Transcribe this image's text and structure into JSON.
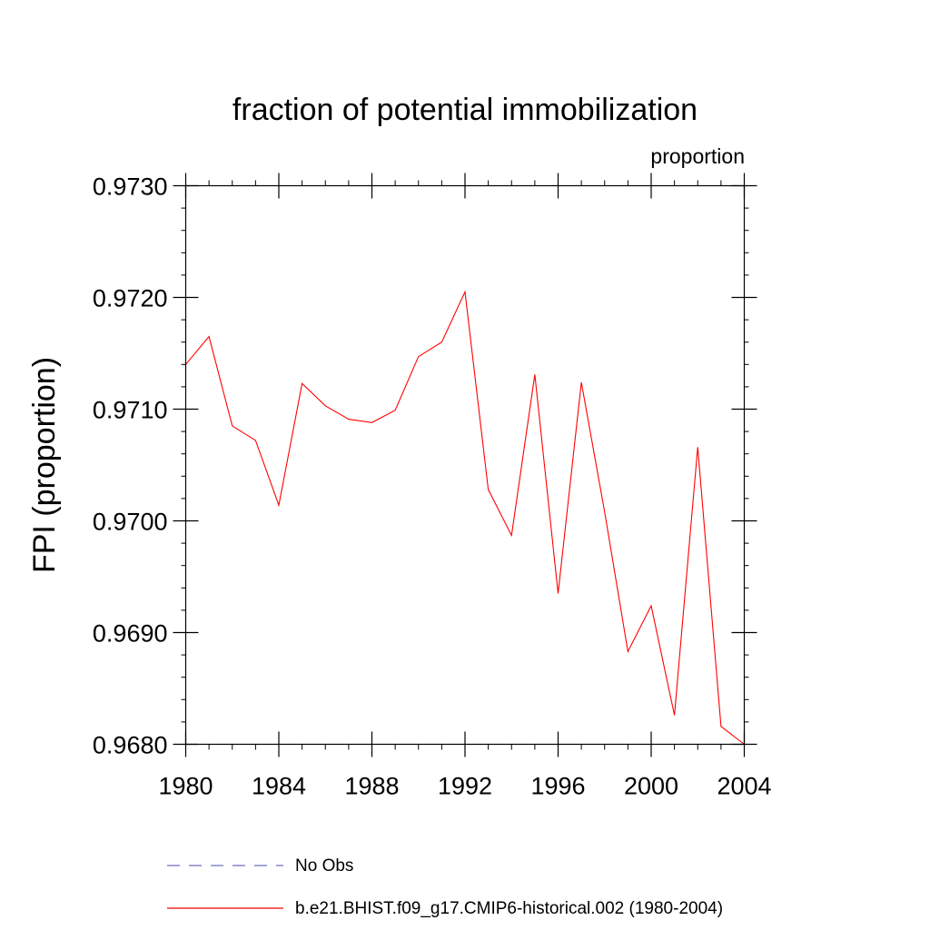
{
  "chart_data": {
    "type": "line",
    "title": "fraction of potential immobilization",
    "subtitle_right": "proportion",
    "ylabel": "FPI  (proportion)",
    "xlabel": "",
    "xlim": [
      1980,
      2004
    ],
    "ylim": [
      0.968,
      0.973
    ],
    "x_ticks": [
      1980,
      1984,
      1988,
      1992,
      1996,
      2000,
      2004
    ],
    "x_tick_labels": [
      "1980",
      "1984",
      "1988",
      "1992",
      "1996",
      "2000",
      "2004"
    ],
    "y_ticks": [
      0.968,
      0.969,
      0.97,
      0.971,
      0.972,
      0.973
    ],
    "y_tick_labels": [
      "0.9680",
      "0.9690",
      "0.9700",
      "0.9710",
      "0.9720",
      "0.9730"
    ],
    "x_minor_step": 1,
    "y_minor_step": 0.0002,
    "grid": false,
    "legend_position": "bottom-left",
    "series": [
      {
        "name": "No Obs",
        "color": "#6f6fbf",
        "dash": "dashed",
        "x": [],
        "values": []
      },
      {
        "name": "b.e21.BHIST.f09_g17.CMIP6-historical.002 (1980-2004)",
        "color": "#ff0000",
        "dash": "solid",
        "x": [
          1980,
          1981,
          1982,
          1983,
          1984,
          1985,
          1986,
          1987,
          1988,
          1989,
          1990,
          1991,
          1992,
          1993,
          1994,
          1995,
          1996,
          1997,
          1998,
          1999,
          2000,
          2001,
          2002,
          2003,
          2004
        ],
        "values": [
          0.9714,
          0.97165,
          0.97085,
          0.97072,
          0.97014,
          0.97123,
          0.97103,
          0.97091,
          0.97088,
          0.97099,
          0.97147,
          0.9716,
          0.97205,
          0.97028,
          0.96987,
          0.97131,
          0.96935,
          0.97124,
          0.97008,
          0.96883,
          0.96924,
          0.96826,
          0.97066,
          0.96816,
          0.968
        ]
      }
    ]
  }
}
